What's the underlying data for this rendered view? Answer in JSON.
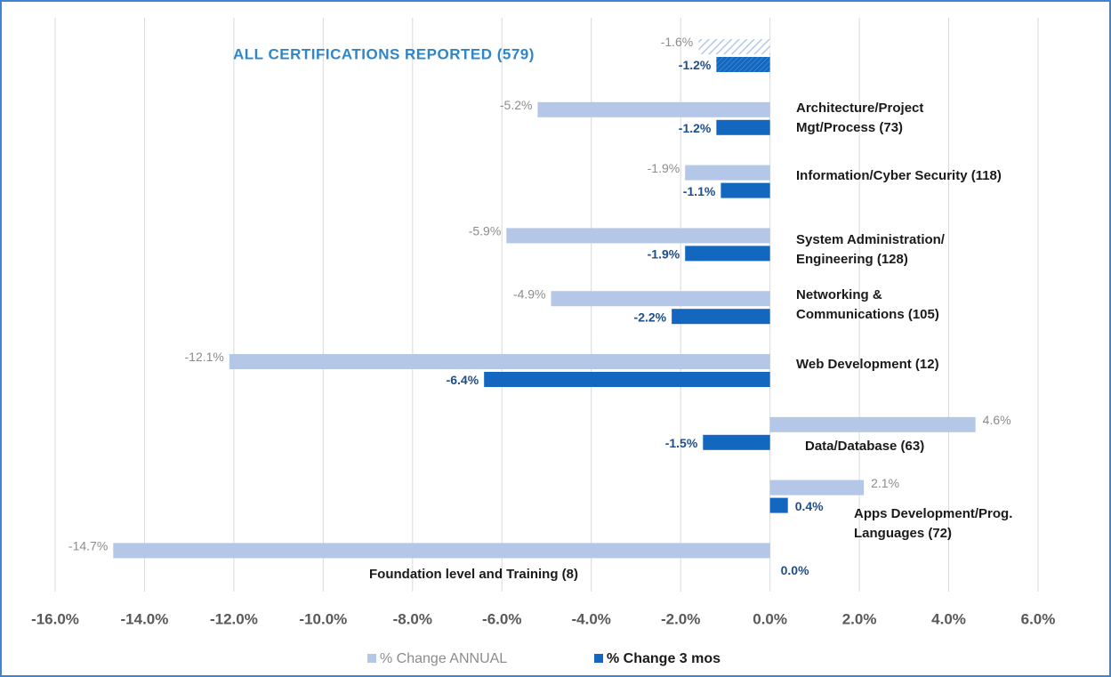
{
  "chart_data": {
    "type": "bar",
    "orientation": "horizontal",
    "categories": [
      [
        "ALL CERTIFICATIONS REPORTED (579)"
      ],
      [
        "Architecture/Project",
        "Mgt/Process (73)"
      ],
      [
        "Information/Cyber Security (118)"
      ],
      [
        "System Administration/",
        "Engineering (128)"
      ],
      [
        "Networking &",
        "Communications  (105)"
      ],
      [
        "Web Development (12)"
      ],
      [
        "Data/Database (63)"
      ],
      [
        "Apps Development/Prog.",
        "Languages (72)"
      ],
      [
        "Foundation level and Training (8)"
      ]
    ],
    "series": [
      {
        "name": "% Change ANNUAL",
        "color": "#b4c7e7",
        "values": [
          -1.6,
          -5.2,
          -1.9,
          -5.9,
          -4.9,
          -12.1,
          4.6,
          2.1,
          -14.7
        ],
        "value_labels": [
          "-1.6%",
          "-5.2%",
          "-1.9%",
          "-5.9%",
          "-4.9%",
          "-12.1%",
          "4.6%",
          "2.1%",
          "-14.7%"
        ]
      },
      {
        "name": "% Change 3 mos",
        "color": "#1467bf",
        "values": [
          -1.2,
          -1.2,
          -1.1,
          -1.9,
          -2.2,
          -6.4,
          -1.5,
          0.4,
          0.0
        ],
        "value_labels": [
          "-1.2%",
          "-1.2%",
          "-1.1%",
          "-1.9%",
          "-2.2%",
          "-6.4%",
          "-1.5%",
          "0.4%",
          "0.0%"
        ]
      }
    ],
    "hatched_categories": [
      0
    ],
    "xlim": [
      -16,
      6
    ],
    "xticks": [
      {
        "value": -16,
        "label": "-16.0%"
      },
      {
        "value": -14,
        "label": "-14.0%"
      },
      {
        "value": -12,
        "label": "-12.0%"
      },
      {
        "value": -10,
        "label": "-10.0%"
      },
      {
        "value": -8,
        "label": "-8.0%"
      },
      {
        "value": -6,
        "label": "-6.0%"
      },
      {
        "value": -4,
        "label": "-4.0%"
      },
      {
        "value": -2,
        "label": "-2.0%"
      },
      {
        "value": 0,
        "label": "0.0%"
      },
      {
        "value": 2,
        "label": "2.0%"
      },
      {
        "value": 4,
        "label": "4.0%"
      },
      {
        "value": 6,
        "label": "6.0%"
      }
    ],
    "grid": true,
    "legend": "bottom"
  }
}
